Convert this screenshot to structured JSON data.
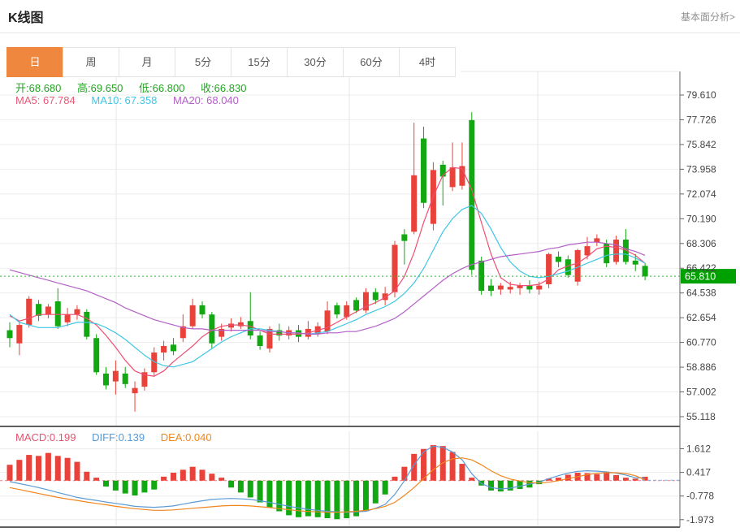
{
  "header": {
    "title": "K线图",
    "analysis_link": "基本面分析>"
  },
  "tabs": [
    {
      "label": "日",
      "active": true
    },
    {
      "label": "周",
      "active": false
    },
    {
      "label": "月",
      "active": false
    },
    {
      "label": "5分",
      "active": false
    },
    {
      "label": "15分",
      "active": false
    },
    {
      "label": "30分",
      "active": false
    },
    {
      "label": "60分",
      "active": false
    },
    {
      "label": "4时",
      "active": false
    }
  ],
  "legend": {
    "open_label": "开:",
    "open_value": "68.680",
    "high_label": "高:",
    "high_value": "69.650",
    "low_label": "低:",
    "low_value": "66.800",
    "close_label": "收:",
    "close_value": "66.830",
    "ma5_label": "MA5: ",
    "ma5_value": "67.784",
    "ma10_label": "MA10: ",
    "ma10_value": "67.358",
    "ma20_label": "MA20: ",
    "ma20_value": "68.040"
  },
  "macd_legend": {
    "macd_label": "MACD:",
    "macd_value": "0.199",
    "diff_label": "DIFF:",
    "diff_value": "0.139",
    "dea_label": "DEA:",
    "dea_value": "0.040"
  },
  "colors": {
    "up": "#e8423a",
    "down": "#12a812",
    "ma5": "#ef4e72",
    "ma10": "#3fc6e6",
    "ma20": "#b45fc8",
    "diff": "#5b9bd5",
    "dea": "#f0861f",
    "active_tab": "#f0873f",
    "price_badge_bg": "#00a000",
    "price_line": "#2db82d",
    "grid": "#ededed",
    "axis": "#666666",
    "tick_text": "#444444"
  },
  "chart_data": {
    "type": "candlestick",
    "main": {
      "y_ticks": [
        "79.610",
        "77.726",
        "75.842",
        "73.958",
        "72.074",
        "70.190",
        "68.306",
        "66.422",
        "64.538",
        "62.654",
        "60.770",
        "58.886",
        "57.002",
        "55.118"
      ],
      "current_price": 65.81,
      "current_price_label": "65.810",
      "candles": [
        [
          61.7,
          62.3,
          60.4,
          61.1
        ],
        [
          60.7,
          62.3,
          59.8,
          62.1
        ],
        [
          62.1,
          64.3,
          61.9,
          64.1
        ],
        [
          63.7,
          64.0,
          62.4,
          62.8
        ],
        [
          62.9,
          63.7,
          62.6,
          63.5
        ],
        [
          63.9,
          64.9,
          61.8,
          62.0
        ],
        [
          62.3,
          63.4,
          62.0,
          62.9
        ],
        [
          62.9,
          63.6,
          62.5,
          63.3
        ],
        [
          63.1,
          63.3,
          61.0,
          61.2
        ],
        [
          61.1,
          61.4,
          58.3,
          58.5
        ],
        [
          58.4,
          58.9,
          57.2,
          57.5
        ],
        [
          57.8,
          59.4,
          56.8,
          58.6
        ],
        [
          58.4,
          58.9,
          57.3,
          57.6
        ],
        [
          56.9,
          57.8,
          55.5,
          57.3
        ],
        [
          57.4,
          58.8,
          57.1,
          58.5
        ],
        [
          58.5,
          60.4,
          58.2,
          60.0
        ],
        [
          60.0,
          60.9,
          59.4,
          60.5
        ],
        [
          60.6,
          61.1,
          59.8,
          60.1
        ],
        [
          61.1,
          62.9,
          60.8,
          62.0
        ],
        [
          62.0,
          64.1,
          61.8,
          63.6
        ],
        [
          63.6,
          63.9,
          62.6,
          62.9
        ],
        [
          62.9,
          63.1,
          60.3,
          60.7
        ],
        [
          61.2,
          62.2,
          60.9,
          61.8
        ],
        [
          61.9,
          62.6,
          61.6,
          62.2
        ],
        [
          62.0,
          62.7,
          61.8,
          62.3
        ],
        [
          62.4,
          64.6,
          61.0,
          61.3
        ],
        [
          61.3,
          61.6,
          60.2,
          60.5
        ],
        [
          60.3,
          62.0,
          60.0,
          61.8
        ],
        [
          61.7,
          62.2,
          60.9,
          61.3
        ],
        [
          61.3,
          62.0,
          61.0,
          61.7
        ],
        [
          61.7,
          62.1,
          60.8,
          61.2
        ],
        [
          61.2,
          62.4,
          61.0,
          61.8
        ],
        [
          61.4,
          62.3,
          61.2,
          62.0
        ],
        [
          61.6,
          63.9,
          61.4,
          63.2
        ],
        [
          63.6,
          63.8,
          62.6,
          62.9
        ],
        [
          62.7,
          63.9,
          62.5,
          63.6
        ],
        [
          64.0,
          64.2,
          63.0,
          63.2
        ],
        [
          63.2,
          64.9,
          63.0,
          64.6
        ],
        [
          64.6,
          64.9,
          63.7,
          64.0
        ],
        [
          64.0,
          65.0,
          63.6,
          64.5
        ],
        [
          64.6,
          68.5,
          64.2,
          68.2
        ],
        [
          69.0,
          69.4,
          66.7,
          68.5
        ],
        [
          69.2,
          77.5,
          69.0,
          73.5
        ],
        [
          76.3,
          77.2,
          71.0,
          71.4
        ],
        [
          69.8,
          74.5,
          69.3,
          73.9
        ],
        [
          74.3,
          74.6,
          71.2,
          73.4
        ],
        [
          72.6,
          76.0,
          72.3,
          74.1
        ],
        [
          72.7,
          76.0,
          72.4,
          74.2
        ],
        [
          77.7,
          78.3,
          65.9,
          66.3
        ],
        [
          67.0,
          67.3,
          64.4,
          64.7
        ],
        [
          65.1,
          65.6,
          64.3,
          64.7
        ],
        [
          64.8,
          65.3,
          64.4,
          65.1
        ],
        [
          64.8,
          65.4,
          64.5,
          65.0
        ],
        [
          64.9,
          65.3,
          64.4,
          65.1
        ],
        [
          65.1,
          65.5,
          64.5,
          64.8
        ],
        [
          64.8,
          65.4,
          64.4,
          65.1
        ],
        [
          65.2,
          67.6,
          64.9,
          67.5
        ],
        [
          67.3,
          67.7,
          66.5,
          66.9
        ],
        [
          67.1,
          67.4,
          65.7,
          65.9
        ],
        [
          65.4,
          67.9,
          65.1,
          67.8
        ],
        [
          67.4,
          68.8,
          67.1,
          68.1
        ],
        [
          68.4,
          69.0,
          68.1,
          68.7
        ],
        [
          68.3,
          68.6,
          66.5,
          66.8
        ],
        [
          66.9,
          68.9,
          66.7,
          68.6
        ],
        [
          68.6,
          69.4,
          66.7,
          66.9
        ],
        [
          67.0,
          67.5,
          66.2,
          66.7
        ],
        [
          66.6,
          66.8,
          65.5,
          65.8
        ]
      ],
      "ma5": [
        62.8,
        62.4,
        62.6,
        62.9,
        62.9,
        62.9,
        62.9,
        62.9,
        62.6,
        62.1,
        61.3,
        60.4,
        59.4,
        58.6,
        58.3,
        58.2,
        58.6,
        59.3,
        59.9,
        60.5,
        61.2,
        61.7,
        62.0,
        62.1,
        62.1,
        62.0,
        61.7,
        61.4,
        61.4,
        61.4,
        61.4,
        61.5,
        61.7,
        61.9,
        62.3,
        62.7,
        63.1,
        63.5,
        63.8,
        64.2,
        64.7,
        65.8,
        67.6,
        69.9,
        71.9,
        73.5,
        74.1,
        74.0,
        72.4,
        69.9,
        67.5,
        65.7,
        65.2,
        65.1,
        65.1,
        65.2,
        65.6,
        66.3,
        66.6,
        66.8,
        67.3,
        67.9,
        68.1,
        68.0,
        67.8,
        67.4,
        66.8
      ],
      "ma10": [
        62.9,
        62.3,
        62.1,
        61.9,
        61.9,
        61.9,
        62.1,
        62.3,
        62.3,
        62.2,
        61.9,
        61.5,
        61.0,
        60.4,
        59.8,
        59.3,
        59.0,
        58.9,
        59.1,
        59.3,
        59.8,
        60.3,
        60.8,
        61.2,
        61.5,
        61.8,
        61.8,
        61.7,
        61.6,
        61.5,
        61.5,
        61.4,
        61.5,
        61.6,
        61.9,
        62.2,
        62.5,
        62.9,
        63.2,
        63.5,
        63.9,
        64.5,
        65.3,
        66.4,
        67.8,
        69.2,
        70.2,
        70.9,
        71.2,
        70.6,
        69.4,
        68.0,
        66.9,
        66.2,
        65.8,
        65.7,
        65.8,
        66.0,
        66.2,
        66.5,
        66.8,
        67.1,
        67.4,
        67.5,
        67.5,
        67.2,
        66.8
      ],
      "ma20": [
        66.3,
        66.1,
        65.9,
        65.7,
        65.5,
        65.3,
        65.1,
        64.9,
        64.7,
        64.4,
        64.1,
        63.8,
        63.4,
        63.1,
        62.8,
        62.5,
        62.3,
        62.1,
        61.9,
        61.8,
        61.8,
        61.7,
        61.7,
        61.7,
        61.7,
        61.7,
        61.7,
        61.6,
        61.6,
        61.5,
        61.5,
        61.4,
        61.4,
        61.5,
        61.5,
        61.6,
        61.6,
        61.8,
        62.0,
        62.3,
        62.6,
        63.1,
        63.7,
        64.3,
        64.9,
        65.5,
        66.0,
        66.4,
        66.7,
        66.9,
        67.1,
        67.3,
        67.4,
        67.5,
        67.6,
        67.7,
        67.9,
        68.0,
        68.2,
        68.3,
        68.4,
        68.4,
        68.3,
        68.2,
        67.9,
        67.7,
        67.4
      ]
    },
    "macd": {
      "y_ticks": [
        "1.612",
        "0.417",
        "-0.778",
        "-1.973"
      ],
      "values": {
        "macd": 0.199,
        "diff": 0.139,
        "dea": 0.04
      },
      "histogram": [
        0.8,
        1.05,
        1.3,
        1.25,
        1.4,
        1.25,
        1.15,
        0.95,
        0.45,
        0.15,
        -0.3,
        -0.5,
        -0.65,
        -0.75,
        -0.6,
        -0.45,
        0.2,
        0.4,
        0.55,
        0.7,
        0.55,
        0.35,
        0.15,
        -0.35,
        -0.6,
        -0.85,
        -1.1,
        -1.35,
        -1.55,
        -1.75,
        -1.85,
        -1.8,
        -1.85,
        -1.9,
        -1.95,
        -1.9,
        -1.8,
        -1.55,
        -1.15,
        -0.7,
        0.2,
        0.7,
        1.35,
        1.6,
        1.8,
        1.75,
        1.45,
        0.85,
        0.15,
        -0.25,
        -0.5,
        -0.55,
        -0.5,
        -0.42,
        -0.35,
        -0.18,
        0.1,
        0.15,
        0.3,
        0.4,
        0.38,
        0.33,
        0.45,
        0.28,
        0.15,
        0.1,
        0.199
      ],
      "diff": [
        -0.05,
        -0.15,
        -0.25,
        -0.35,
        -0.47,
        -0.6,
        -0.72,
        -0.85,
        -0.93,
        -1.0,
        -1.08,
        -1.15,
        -1.22,
        -1.3,
        -1.33,
        -1.35,
        -1.32,
        -1.28,
        -1.19,
        -1.1,
        -1.02,
        -0.95,
        -0.92,
        -0.9,
        -0.92,
        -0.95,
        -1.02,
        -1.1,
        -1.2,
        -1.3,
        -1.38,
        -1.45,
        -1.5,
        -1.55,
        -1.58,
        -1.6,
        -1.58,
        -1.55,
        -1.4,
        -1.2,
        -0.7,
        0.0,
        0.8,
        1.45,
        1.75,
        1.68,
        1.45,
        1.05,
        0.35,
        -0.15,
        -0.35,
        -0.42,
        -0.38,
        -0.28,
        -0.18,
        -0.08,
        0.1,
        0.25,
        0.38,
        0.47,
        0.5,
        0.48,
        0.44,
        0.38,
        0.28,
        0.15,
        0.139
      ],
      "dea": [
        -0.35,
        -0.45,
        -0.55,
        -0.65,
        -0.75,
        -0.85,
        -0.93,
        -1.0,
        -1.08,
        -1.15,
        -1.22,
        -1.3,
        -1.36,
        -1.42,
        -1.46,
        -1.5,
        -1.5,
        -1.48,
        -1.44,
        -1.4,
        -1.36,
        -1.32,
        -1.28,
        -1.26,
        -1.26,
        -1.28,
        -1.32,
        -1.36,
        -1.42,
        -1.47,
        -1.52,
        -1.56,
        -1.58,
        -1.6,
        -1.6,
        -1.58,
        -1.55,
        -1.5,
        -1.42,
        -1.3,
        -1.1,
        -0.75,
        -0.35,
        0.1,
        0.55,
        0.9,
        1.1,
        1.15,
        1.05,
        0.8,
        0.5,
        0.25,
        0.08,
        -0.02,
        -0.1,
        -0.12,
        -0.08,
        0.0,
        0.1,
        0.2,
        0.3,
        0.37,
        0.4,
        0.4,
        0.36,
        0.25,
        0.04
      ]
    }
  }
}
